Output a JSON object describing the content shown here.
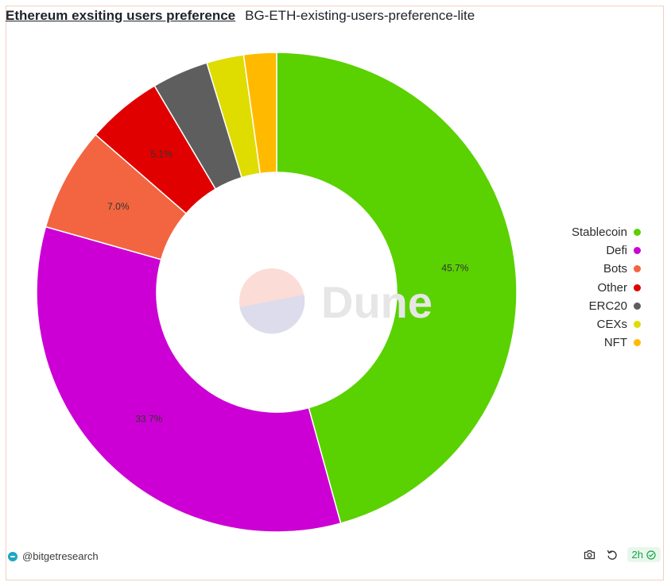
{
  "header": {
    "title": "Ethereum exsiting users preference",
    "query_name": "BG-ETH-existing-users-preference-lite"
  },
  "watermark": "Dune",
  "footer": {
    "handle": "@bitgetresearch",
    "age": "2h"
  },
  "chart_data": {
    "type": "pie",
    "style": "donut",
    "legend_position": "right",
    "categories": [
      "Stablecoin",
      "Defi",
      "Bots",
      "Other",
      "ERC20",
      "CEXs",
      "NFT"
    ],
    "values": [
      45.7,
      33.7,
      7.0,
      5.1,
      3.8,
      2.5,
      2.2
    ],
    "colors": [
      "#5ad100",
      "#cc00d4",
      "#f26540",
      "#e00000",
      "#5e5e5e",
      "#dfdc00",
      "#ffba00"
    ],
    "data_labels": [
      "45.7%",
      "33.7%",
      "7.0%",
      "5.1%",
      "",
      "",
      ""
    ]
  }
}
